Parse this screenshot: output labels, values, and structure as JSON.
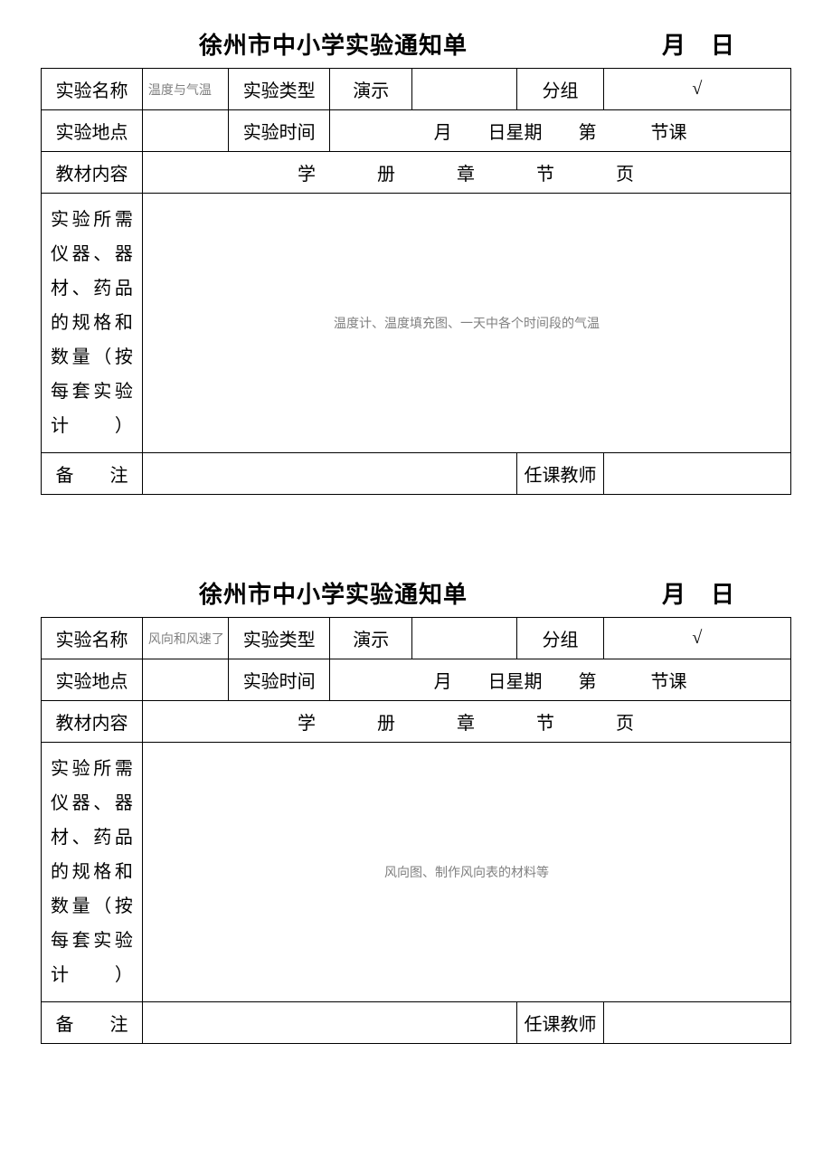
{
  "forms": [
    {
      "title": "徐州市中小学实验通知单",
      "date_suffix": "月日",
      "labels": {
        "exp_name": "实验名称",
        "exp_type": "实验类型",
        "demo": "演示",
        "group": "分组",
        "location": "实验地点",
        "time": "实验时间",
        "time_value": "月　　日星期　　第　　　节课",
        "content": "教材内容",
        "content_value": "学　　　册　　　章　　　节　　　页",
        "materials": "实验所需仪器、器材、药品的规格和数量（按每套实验计）",
        "remark": "备　　注",
        "teacher": "任课教师"
      },
      "values": {
        "exp_name": "温度与气温",
        "group_check": "√",
        "materials": "温度计、温度填充图、一天中各个时间段的气温"
      }
    },
    {
      "title": "徐州市中小学实验通知单",
      "date_suffix": "月日",
      "labels": {
        "exp_name": "实验名称",
        "exp_type": "实验类型",
        "demo": "演示",
        "group": "分组",
        "location": "实验地点",
        "time": "实验时间",
        "time_value": "月　　日星期　　第　　　节课",
        "content": "教材内容",
        "content_value": "学　　　册　　　章　　　节　　　页",
        "materials": "实验所需仪器、器材、药品的规格和数量（按每套实验计）",
        "remark": "备　　注",
        "teacher": "任课教师"
      },
      "values": {
        "exp_name": "风向和风速了",
        "group_check": "√",
        "materials": "风向图、制作风向表的材料等"
      }
    }
  ],
  "colors": {
    "text": "#000000",
    "gray_text": "#808080",
    "border": "#000000",
    "background": "#ffffff"
  }
}
